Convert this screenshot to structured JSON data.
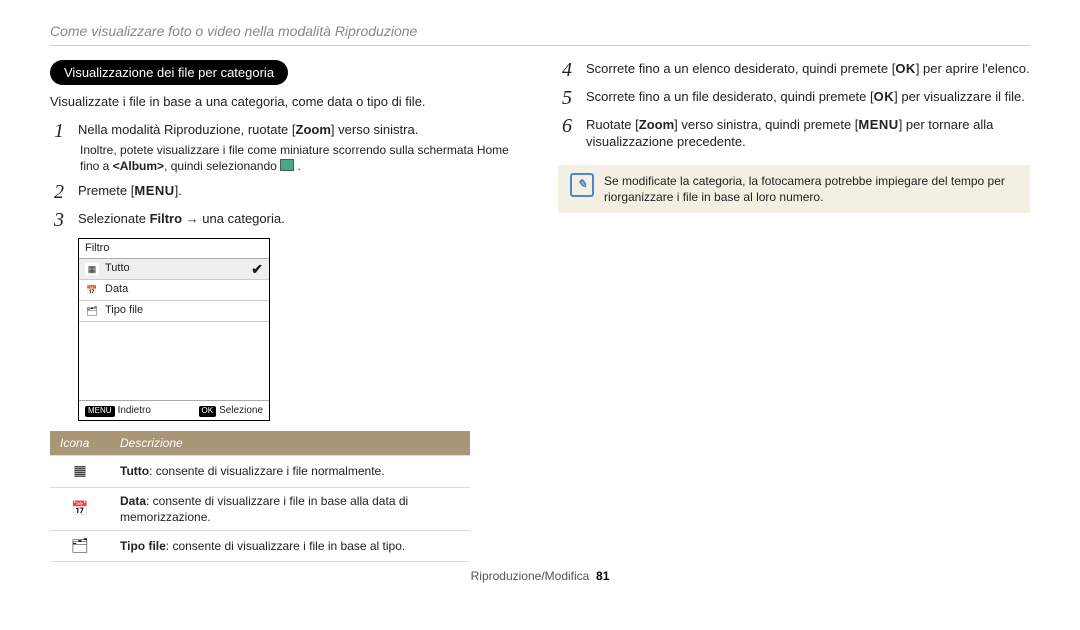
{
  "header": "Come visualizzare foto o video nella modalità Riproduzione",
  "pill": "Visualizzazione dei file per categoria",
  "intro": "Visualizzate i file in base a una categoria, come data o tipo di file.",
  "left_steps": {
    "s1": {
      "num": "1",
      "text_pre": "Nella modalità Riproduzione, ruotate [",
      "zoom": "Zoom",
      "text_post": "] verso sinistra.",
      "sub_pre": "Inoltre, potete visualizzare i file come miniature scorrendo sulla schermata Home fino a ",
      "sub_bold": "<Album>",
      "sub_post": ", quindi selezionando "
    },
    "s2": {
      "num": "2",
      "text_pre": "Premete [",
      "menu": "MENU",
      "text_post": "]."
    },
    "s3": {
      "num": "3",
      "text_pre": "Selezionate ",
      "filtro": "Filtro",
      "arrow": " → ",
      "text_post": "una categoria."
    }
  },
  "filter_panel": {
    "title": "Filtro",
    "rows": [
      {
        "label": "Tutto",
        "selected": true
      },
      {
        "label": "Data",
        "selected": false
      },
      {
        "label": "Tipo file",
        "selected": false
      }
    ],
    "footer_left_tag": "MENU",
    "footer_left": "Indietro",
    "footer_right_tag": "OK",
    "footer_right": "Selezione"
  },
  "desc_table": {
    "head_icon": "Icona",
    "head_desc": "Descrizione",
    "rows": [
      {
        "icon_glyph": "▦",
        "bold": "Tutto",
        "rest": ": consente di visualizzare i file normalmente."
      },
      {
        "icon_glyph": "📅",
        "bold": "Data",
        "rest": ": consente di visualizzare i file in base alla data di memorizzazione."
      },
      {
        "icon_glyph": "🗂",
        "bold": "Tipo file",
        "rest": ": consente di visualizzare i file in base al tipo."
      }
    ]
  },
  "right_steps": {
    "s4": {
      "num": "4",
      "pre": "Scorrete fino a un elenco desiderato, quindi premete [",
      "ok": "OK",
      "post": "] per aprire l'elenco."
    },
    "s5": {
      "num": "5",
      "pre": "Scorrete fino a un file desiderato, quindi premete [",
      "ok": "OK",
      "post": "] per visualizzare il file."
    },
    "s6": {
      "num": "6",
      "pre": "Ruotate [",
      "zoom": "Zoom",
      "mid": "] verso sinistra, quindi premete [",
      "menu": "MENU",
      "post": "] per tornare alla visualizzazione precedente."
    }
  },
  "note": {
    "icon": "✐",
    "text": "Se modificate la categoria, la fotocamera potrebbe impiegare del tempo per riorganizzare i file in base al loro numero."
  },
  "footer": {
    "section": "Riproduzione/Modifica",
    "page": "81"
  }
}
